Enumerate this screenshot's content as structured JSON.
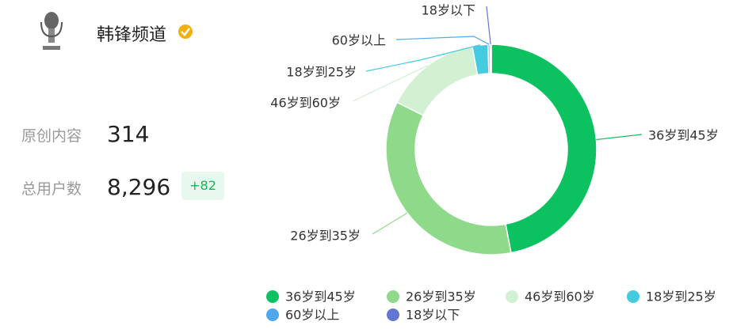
{
  "profile": {
    "name": "韩锋频道",
    "stats": [
      {
        "label": "原创内容",
        "value": "314"
      },
      {
        "label": "总用户数",
        "value": "8,296",
        "change": "+82"
      }
    ]
  },
  "chart_data": {
    "type": "donut",
    "categories": [
      "36岁到45岁",
      "26岁到35岁",
      "46岁到60岁",
      "18岁到25岁",
      "60岁以上",
      "18岁以下"
    ],
    "values": [
      47,
      35.4,
      14.7,
      2.4,
      0.3,
      0.2
    ],
    "colors": [
      "#0cc160",
      "#8ed98a",
      "#d2f0d2",
      "#45cbe0",
      "#4fa8ee",
      "#6276d2"
    ],
    "legend": "bottom"
  }
}
